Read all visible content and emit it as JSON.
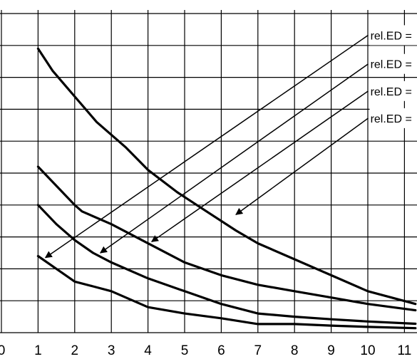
{
  "chart_data": {
    "type": "line",
    "title": "",
    "xlabel": "",
    "ylabel": "",
    "xlim": [
      0,
      11.3
    ],
    "x_ticks": [
      0,
      1,
      2,
      3,
      4,
      5,
      6,
      7,
      8,
      9,
      10,
      11
    ],
    "x_tick_labels": [
      "0",
      "1",
      "2",
      "3",
      "4",
      "5",
      "6",
      "7",
      "8",
      "9",
      "10",
      "11"
    ],
    "grid": true,
    "legend": "none",
    "line_color": "#000000",
    "grid_color": "#000000",
    "series": [
      {
        "x": [
          1,
          1.4,
          2,
          2.6,
          3.4,
          4,
          4.8,
          5.6,
          6.4,
          7,
          8,
          9,
          10,
          11.3
        ],
        "values": [
          8.9,
          8.2,
          7.4,
          6.6,
          5.8,
          5.1,
          4.4,
          3.8,
          3.2,
          2.8,
          2.3,
          1.8,
          1.3,
          0.9
        ]
      },
      {
        "x": [
          1,
          1.5,
          2,
          2.2,
          3,
          4,
          5,
          6,
          7,
          8,
          9,
          10,
          11.3
        ],
        "values": [
          5.2,
          4.6,
          4.0,
          3.8,
          3.4,
          2.8,
          2.2,
          1.8,
          1.5,
          1.3,
          1.1,
          0.9,
          0.7
        ]
      },
      {
        "x": [
          1,
          1.5,
          2,
          2.5,
          3,
          4,
          5,
          6,
          7,
          8,
          9,
          10,
          11.3
        ],
        "values": [
          4.0,
          3.4,
          2.9,
          2.5,
          2.2,
          1.7,
          1.3,
          0.9,
          0.6,
          0.5,
          0.42,
          0.35,
          0.28
        ]
      },
      {
        "x": [
          1,
          1.5,
          2,
          2.5,
          3,
          4,
          5,
          6,
          7,
          8,
          9,
          10,
          11.3
        ],
        "values": [
          2.4,
          2.0,
          1.6,
          1.45,
          1.3,
          0.8,
          0.6,
          0.45,
          0.27,
          0.27,
          0.22,
          0.18,
          0.14
        ]
      }
    ],
    "annotations": [
      {
        "label": "rel.ED =",
        "x_label": 10.05,
        "y_label": 9.5,
        "x_arrow": 1.2,
        "y_arrow": 2.35
      },
      {
        "label": "rel.ED =",
        "x_label": 10.05,
        "y_label": 8.6,
        "x_arrow": 2.7,
        "y_arrow": 2.5
      },
      {
        "label": "rel.ED =",
        "x_label": 10.05,
        "y_label": 7.75,
        "x_arrow": 4.1,
        "y_arrow": 2.85
      },
      {
        "label": "rel.ED =",
        "x_label": 10.05,
        "y_label": 6.9,
        "x_arrow": 6.4,
        "y_arrow": 3.7
      }
    ]
  }
}
